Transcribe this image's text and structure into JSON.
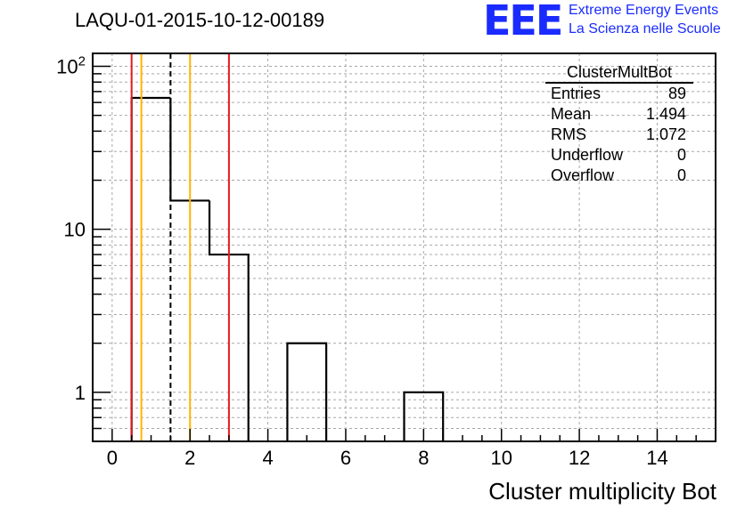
{
  "title": "LAQU-01-2015-10-12-00189",
  "logo": {
    "mark": "EEE",
    "line1": "Extreme Energy Events",
    "line2": "La Scienza nelle Scuole",
    "color": "#1a2bff"
  },
  "stats_box": {
    "name": "ClusterMultBot",
    "rows": [
      {
        "label": "Entries",
        "value": "89"
      },
      {
        "label": "Mean",
        "value": "1.494"
      },
      {
        "label": "RMS",
        "value": "1.072"
      },
      {
        "label": "Underflow",
        "value": "0"
      },
      {
        "label": "Overflow",
        "value": "0"
      }
    ]
  },
  "chart_data": {
    "type": "histogram",
    "title": "LAQU-01-2015-10-12-00189",
    "xlabel": "Cluster multiplicity Bot",
    "ylabel": "",
    "y_scale": "log",
    "xlim": [
      -0.5,
      15.5
    ],
    "ylim": [
      0.5,
      120
    ],
    "x_ticks": [
      0,
      2,
      4,
      6,
      8,
      10,
      12,
      14
    ],
    "x_tick_labels": [
      "0",
      "2",
      "4",
      "6",
      "8",
      "10",
      "12",
      "14"
    ],
    "y_ticks": [
      1,
      10,
      100
    ],
    "y_tick_labels": [
      "1",
      "10",
      "10^2"
    ],
    "grid": true,
    "bin_width": 1,
    "bin_centers": [
      0,
      1,
      2,
      3,
      4,
      5,
      6,
      7,
      8,
      9,
      10,
      11,
      12,
      13,
      14,
      15
    ],
    "counts": [
      0,
      64,
      15,
      7,
      0,
      2,
      0,
      0,
      1,
      0,
      0,
      0,
      0,
      0,
      0,
      0
    ],
    "vertical_lines": [
      {
        "x": 0.5,
        "color": "#e8191e",
        "style": "solid"
      },
      {
        "x": 0.75,
        "color": "#ffb400",
        "style": "solid"
      },
      {
        "x": 1.5,
        "color": "#000000",
        "style": "dashed"
      },
      {
        "x": 2.0,
        "color": "#ffb400",
        "style": "solid"
      },
      {
        "x": 3.0,
        "color": "#e8191e",
        "style": "solid"
      }
    ]
  }
}
